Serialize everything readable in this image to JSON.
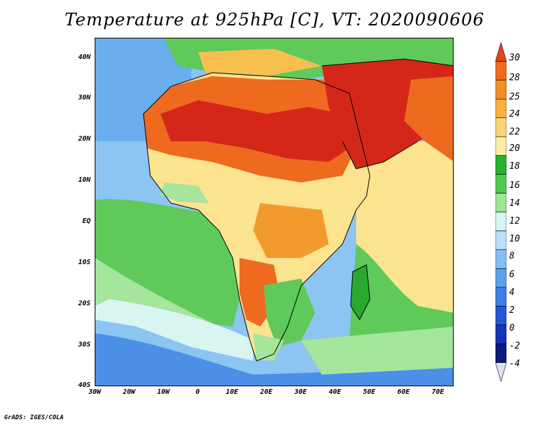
{
  "title": "Temperature at 925hPa [C], VT: 2020090606",
  "credit": "GrADS: IGES/COLA",
  "axes": {
    "lat_labels": [
      "40N",
      "30N",
      "20N",
      "10N",
      "EQ",
      "10S",
      "20S",
      "30S",
      "40S"
    ],
    "lon_labels": [
      "30W",
      "20W",
      "10W",
      "0",
      "10E",
      "20E",
      "30E",
      "40E",
      "50E",
      "60E",
      "70E"
    ]
  },
  "colorbar": {
    "labels": [
      "30",
      "28",
      "25",
      "24",
      "22",
      "20",
      "18",
      "16",
      "14",
      "12",
      "10",
      "8",
      "6",
      "4",
      "2",
      "0",
      "-2",
      "-4"
    ],
    "colors": [
      "#e8421c",
      "#f06a1e",
      "#f28e26",
      "#f6b23c",
      "#fad477",
      "#fbeda6",
      "#24b42c",
      "#52c94e",
      "#9ce597",
      "#d3f7f0",
      "#b8def8",
      "#84bdf5",
      "#5aa0ef",
      "#3d7ee6",
      "#2256d6",
      "#1632b8",
      "#0c1a7c",
      "#e0e0f6"
    ]
  },
  "map_colors": {
    "hot": "#d4271a",
    "warm_orange": "#ee6a1f",
    "orange": "#f39a2e",
    "light_orange": "#f7bf4e",
    "yellow": "#fbe38f",
    "green_dark": "#2aa92e",
    "green": "#5fc95a",
    "green_light": "#a5e59c",
    "ice": "#d8f5f2",
    "blue_light": "#b4dcf7",
    "blue": "#8cc4f2",
    "blue_mid": "#6aaeee",
    "blue_dark": "#4b8fe6"
  }
}
